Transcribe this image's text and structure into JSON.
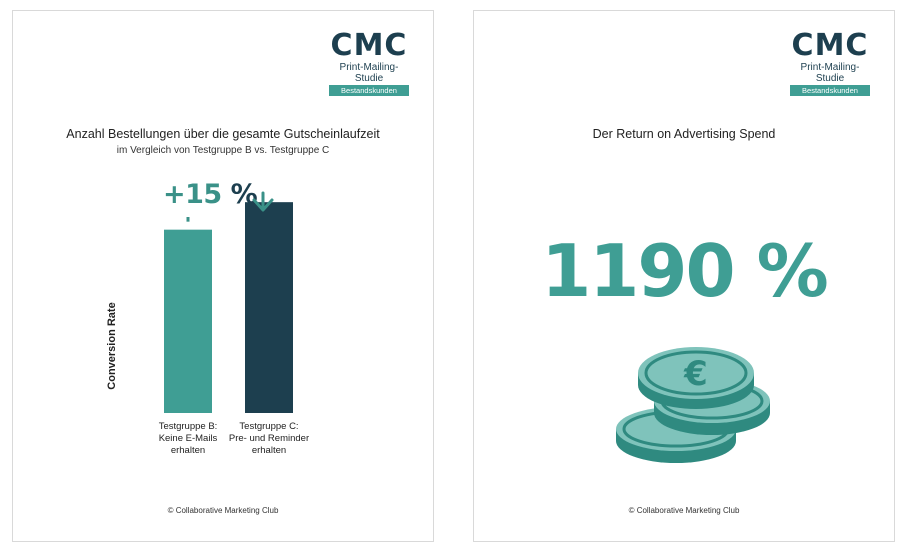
{
  "logo": {
    "main": "CMC",
    "sub": "Print-Mailing-Studie",
    "badge": "Bestandskunden"
  },
  "left_card": {
    "title": "Anzahl Bestellungen über die gesamte Gutscheinlaufzeit",
    "subtitle": "im Vergleich von Testgruppe B vs. Testgruppe C",
    "delta_value": "+15",
    "delta_unit": "%",
    "footer": "© Collaborative Marketing Club"
  },
  "right_card": {
    "title": "Der Return on Advertising Spend",
    "big_number": "1190 %",
    "footer": "© Collaborative Marketing Club",
    "coin_symbol": "€",
    "icon": "euro-coins-stack-icon"
  },
  "chart_data": {
    "type": "bar",
    "title": "Anzahl Bestellungen über die gesamte Gutscheinlaufzeit",
    "subtitle": "im Vergleich von Testgruppe B vs. Testgruppe C",
    "ylabel": "Conversion Rate",
    "xlabel": "",
    "categories": [
      "Testgruppe B:\nKeine E-Mails\nerhalten",
      "Testgruppe C:\nPre- und Reminder\nerhalten"
    ],
    "values": [
      100,
      115
    ],
    "ylim": [
      0,
      120
    ],
    "annotation": "+15 %",
    "colors": [
      "#3f9e94",
      "#1d3f4f"
    ],
    "grid": false,
    "legend": "none"
  },
  "colors": {
    "teal": "#3f9e94",
    "dark": "#1d3f4f"
  }
}
